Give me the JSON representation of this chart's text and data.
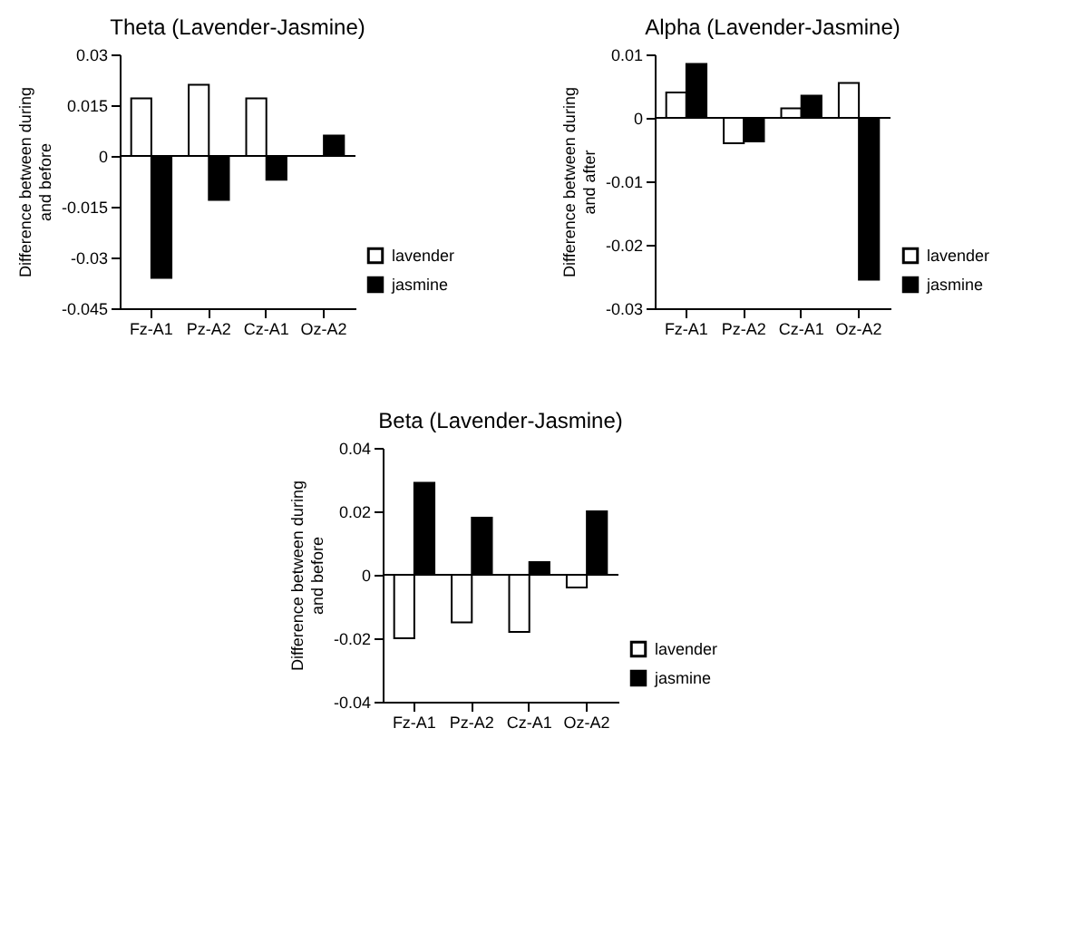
{
  "chart_data": [
    {
      "type": "bar",
      "title": "Theta (Lavender-Jasmine)",
      "ylabel": "Difference between during and before",
      "categories": [
        "Fz-A1",
        "Pz-A2",
        "Cz-A1",
        "Oz-A2"
      ],
      "series": [
        {
          "name": "lavender",
          "color": "#ffffff",
          "values": [
            0.017,
            0.021,
            0.017,
            null
          ]
        },
        {
          "name": "jasmine",
          "color": "#000000",
          "values": [
            -0.036,
            -0.013,
            -0.007,
            0.006
          ]
        }
      ],
      "ylim": [
        -0.045,
        0.03
      ],
      "yticks": [
        -0.045,
        -0.03,
        -0.015,
        0,
        0.015,
        0.03
      ],
      "grid": false,
      "legend": "bottom right",
      "ref_lines": [
        {
          "axis": "y",
          "value": 0,
          "color": "#000000"
        }
      ]
    },
    {
      "type": "bar",
      "title": "Alpha (Lavender-Jasmine)",
      "ylabel": "Difference between during and after",
      "categories": [
        "Fz-A1",
        "Pz-A2",
        "Cz-A1",
        "Oz-A2"
      ],
      "series": [
        {
          "name": "lavender",
          "color": "#ffffff",
          "values": [
            0.004,
            -0.004,
            0.0015,
            0.0055
          ]
        },
        {
          "name": "jasmine",
          "color": "#000000",
          "values": [
            0.0085,
            -0.0037,
            0.0035,
            -0.0255
          ]
        }
      ],
      "ylim": [
        -0.03,
        0.01
      ],
      "yticks": [
        -0.03,
        -0.02,
        -0.01,
        0,
        0.01
      ],
      "grid": false,
      "legend": "bottom right",
      "ref_lines": [
        {
          "axis": "y",
          "value": 0,
          "color": "#000000"
        }
      ]
    },
    {
      "type": "bar",
      "title": "Beta (Lavender-Jasmine)",
      "ylabel": "Difference between during and before",
      "categories": [
        "Fz-A1",
        "Pz-A2",
        "Cz-A1",
        "Oz-A2"
      ],
      "series": [
        {
          "name": "lavender",
          "color": "#ffffff",
          "values": [
            -0.02,
            -0.015,
            -0.018,
            -0.004
          ]
        },
        {
          "name": "jasmine",
          "color": "#000000",
          "values": [
            0.029,
            0.018,
            0.004,
            0.02
          ]
        }
      ],
      "ylim": [
        -0.04,
        0.04
      ],
      "yticks": [
        -0.04,
        -0.02,
        0,
        0.02,
        0.04
      ],
      "grid": false,
      "legend": "bottom right",
      "ref_lines": [
        {
          "axis": "y",
          "value": 0,
          "color": "#000000"
        }
      ]
    }
  ]
}
